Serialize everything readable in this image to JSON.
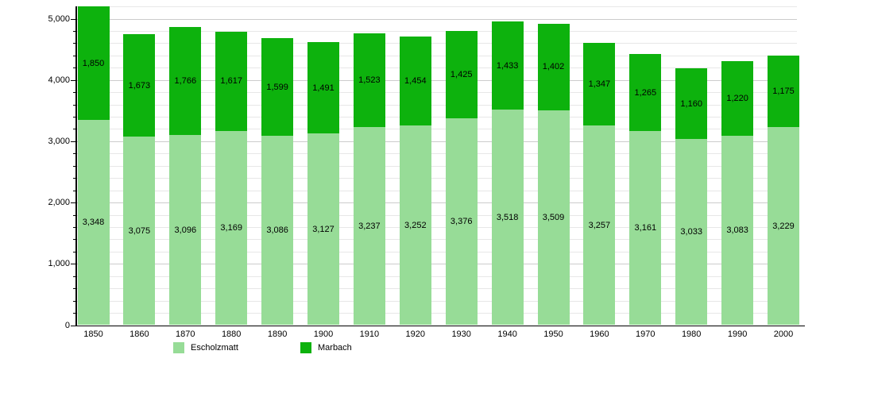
{
  "chart_data": {
    "type": "bar",
    "stacked": true,
    "title": "",
    "xlabel": "",
    "ylabel": "",
    "categories": [
      "1850",
      "1860",
      "1870",
      "1880",
      "1890",
      "1900",
      "1910",
      "1920",
      "1930",
      "1940",
      "1950",
      "1960",
      "1970",
      "1980",
      "1990",
      "2000"
    ],
    "series": [
      {
        "name": "Escholzmatt",
        "color": "#97dc97",
        "values": [
          3348,
          3075,
          3096,
          3169,
          3086,
          3127,
          3237,
          3252,
          3376,
          3518,
          3509,
          3257,
          3161,
          3033,
          3083,
          3229
        ]
      },
      {
        "name": "Marbach",
        "color": "#0db20d",
        "values": [
          1850,
          1673,
          1766,
          1617,
          1599,
          1491,
          1523,
          1454,
          1425,
          1433,
          1402,
          1347,
          1265,
          1160,
          1220,
          1175
        ]
      }
    ],
    "ylim": [
      0,
      5200
    ],
    "yticks_major": [
      0,
      1000,
      2000,
      3000,
      4000,
      5000
    ],
    "ytick_minor_interval": 200,
    "grid": true,
    "legend_position": "bottom",
    "value_labels": "comma-separated thousands, centered inside each segment"
  },
  "colors": {
    "background": "#ffffff",
    "axis": "#000000",
    "gridline_minor": "#e7e7e7",
    "gridline_major": "#cccccc",
    "label_text": "#000000"
  },
  "legend": {
    "items": [
      {
        "label": "Escholzmatt",
        "color": "#97dc97"
      },
      {
        "label": "Marbach",
        "color": "#0db20d"
      }
    ]
  }
}
